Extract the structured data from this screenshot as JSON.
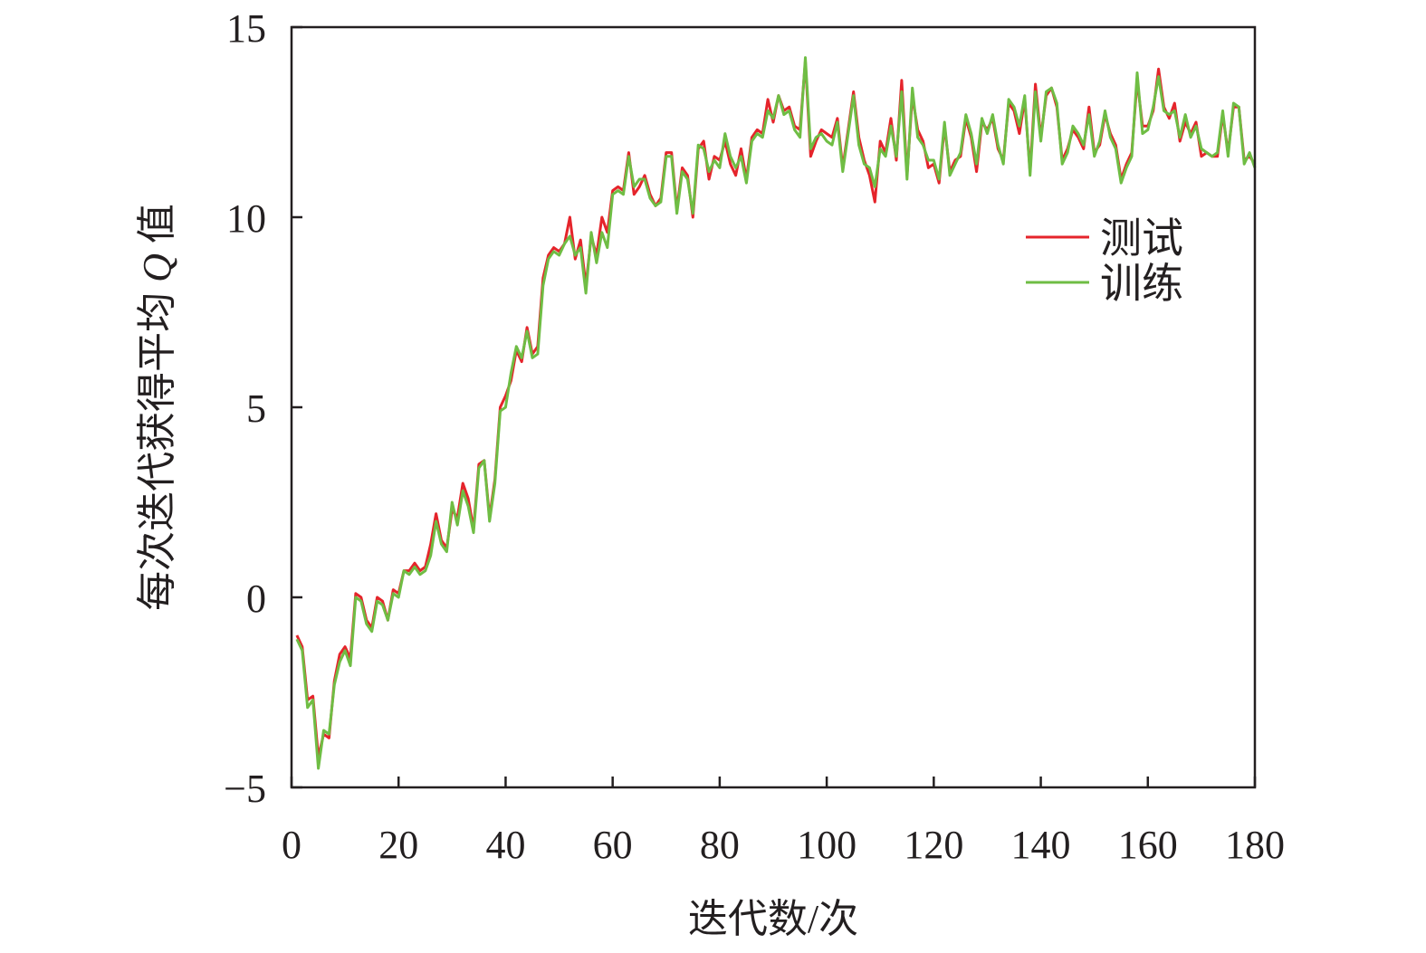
{
  "chart_data": {
    "type": "line",
    "title": "",
    "xlabel": "迭代数/次",
    "ylabel_parts": [
      "每次迭代获得平均 ",
      "Q",
      " 值"
    ],
    "xlim": [
      0,
      180
    ],
    "ylim": [
      -5,
      15
    ],
    "x_ticks": [
      0,
      20,
      40,
      60,
      80,
      100,
      120,
      140,
      160,
      180
    ],
    "y_ticks": [
      -5,
      0,
      5,
      10,
      15
    ],
    "y_tick_labels": [
      "−5",
      "0",
      "5",
      "10",
      "15"
    ],
    "grid": false,
    "legend_position": "right, upper-middle",
    "series": [
      {
        "name": "测试",
        "color": "#e5242b",
        "x": [
          1,
          2,
          3,
          4,
          5,
          6,
          7,
          8,
          9,
          10,
          11,
          12,
          13,
          14,
          15,
          16,
          17,
          18,
          19,
          20,
          21,
          22,
          23,
          24,
          25,
          26,
          27,
          28,
          29,
          30,
          31,
          32,
          33,
          34,
          35,
          36,
          37,
          38,
          39,
          40,
          41,
          42,
          43,
          44,
          45,
          46,
          47,
          48,
          49,
          50,
          51,
          52,
          53,
          54,
          55,
          56,
          57,
          58,
          59,
          60,
          61,
          62,
          63,
          64,
          65,
          66,
          67,
          68,
          69,
          70,
          71,
          72,
          73,
          74,
          75,
          76,
          77,
          78,
          79,
          80,
          81,
          82,
          83,
          84,
          85,
          86,
          87,
          88,
          89,
          90,
          91,
          92,
          93,
          94,
          95,
          96,
          97,
          98,
          99,
          100,
          101,
          102,
          103,
          104,
          105,
          106,
          107,
          108,
          109,
          110,
          111,
          112,
          113,
          114,
          115,
          116,
          117,
          118,
          119,
          120,
          121,
          122,
          123,
          124,
          125,
          126,
          127,
          128,
          129,
          130,
          131,
          132,
          133,
          134,
          135,
          136,
          137,
          138,
          139,
          140,
          141,
          142,
          143,
          144,
          145,
          146,
          147,
          148,
          149,
          150,
          151,
          152,
          153,
          154,
          155,
          156,
          157,
          158,
          159,
          160,
          161,
          162,
          163,
          164,
          165,
          166,
          167,
          168,
          169,
          170,
          171,
          172,
          173,
          174,
          175,
          176,
          177,
          178,
          179,
          180
        ],
        "values": [
          -1.0,
          -1.3,
          -2.7,
          -2.6,
          -4.2,
          -3.6,
          -3.7,
          -2.2,
          -1.5,
          -1.3,
          -1.6,
          0.1,
          0.0,
          -0.6,
          -0.8,
          0.0,
          -0.1,
          -0.6,
          0.2,
          0.1,
          0.7,
          0.7,
          0.9,
          0.7,
          0.8,
          1.4,
          2.2,
          1.5,
          1.3,
          2.3,
          2.1,
          3.0,
          2.6,
          1.8,
          3.5,
          3.6,
          2.1,
          3.1,
          5.0,
          5.3,
          5.7,
          6.5,
          6.2,
          7.1,
          6.4,
          6.6,
          8.4,
          9.0,
          9.2,
          9.1,
          9.3,
          10.0,
          8.9,
          9.4,
          8.2,
          9.5,
          9.0,
          10.0,
          9.6,
          10.7,
          10.8,
          10.7,
          11.7,
          10.6,
          10.8,
          11.1,
          10.6,
          10.3,
          10.5,
          11.7,
          11.7,
          10.2,
          11.3,
          11.1,
          10.0,
          11.8,
          12.0,
          11.0,
          11.6,
          11.5,
          12.0,
          11.4,
          11.1,
          11.8,
          11.0,
          12.1,
          12.3,
          12.2,
          13.1,
          12.5,
          13.2,
          12.8,
          12.9,
          12.4,
          12.3,
          14.1,
          11.6,
          12.0,
          12.3,
          12.2,
          12.1,
          12.6,
          11.3,
          12.3,
          13.3,
          12.1,
          11.5,
          11.1,
          10.4,
          12.0,
          11.7,
          12.6,
          11.5,
          13.6,
          11.1,
          13.2,
          12.3,
          12.0,
          11.3,
          11.4,
          10.9,
          12.4,
          11.2,
          11.5,
          11.6,
          12.6,
          12.1,
          11.2,
          12.5,
          12.3,
          12.6,
          11.8,
          11.5,
          13.0,
          12.8,
          12.2,
          13.1,
          11.2,
          13.5,
          12.1,
          13.2,
          13.4,
          12.9,
          11.5,
          11.8,
          12.3,
          12.1,
          11.8,
          12.9,
          11.7,
          11.9,
          12.7,
          12.2,
          11.9,
          11.0,
          11.4,
          11.7,
          13.6,
          12.4,
          12.4,
          12.8,
          13.9,
          12.9,
          12.6,
          13.0,
          12.0,
          12.5,
          12.2,
          12.5,
          11.6,
          11.7,
          11.6,
          11.6,
          12.7,
          11.7,
          12.9,
          12.9,
          11.5,
          11.6,
          11.4
        ]
      },
      {
        "name": "训练",
        "color": "#6fbd44",
        "x": [
          1,
          2,
          3,
          4,
          5,
          6,
          7,
          8,
          9,
          10,
          11,
          12,
          13,
          14,
          15,
          16,
          17,
          18,
          19,
          20,
          21,
          22,
          23,
          24,
          25,
          26,
          27,
          28,
          29,
          30,
          31,
          32,
          33,
          34,
          35,
          36,
          37,
          38,
          39,
          40,
          41,
          42,
          43,
          44,
          45,
          46,
          47,
          48,
          49,
          50,
          51,
          52,
          53,
          54,
          55,
          56,
          57,
          58,
          59,
          60,
          61,
          62,
          63,
          64,
          65,
          66,
          67,
          68,
          69,
          70,
          71,
          72,
          73,
          74,
          75,
          76,
          77,
          78,
          79,
          80,
          81,
          82,
          83,
          84,
          85,
          86,
          87,
          88,
          89,
          90,
          91,
          92,
          93,
          94,
          95,
          96,
          97,
          98,
          99,
          100,
          101,
          102,
          103,
          104,
          105,
          106,
          107,
          108,
          109,
          110,
          111,
          112,
          113,
          114,
          115,
          116,
          117,
          118,
          119,
          120,
          121,
          122,
          123,
          124,
          125,
          126,
          127,
          128,
          129,
          130,
          131,
          132,
          133,
          134,
          135,
          136,
          137,
          138,
          139,
          140,
          141,
          142,
          143,
          144,
          145,
          146,
          147,
          148,
          149,
          150,
          151,
          152,
          153,
          154,
          155,
          156,
          157,
          158,
          159,
          160,
          161,
          162,
          163,
          164,
          165,
          166,
          167,
          168,
          169,
          170,
          171,
          172,
          173,
          174,
          175,
          176,
          177,
          178,
          179,
          180
        ],
        "values": [
          -1.1,
          -1.4,
          -2.9,
          -2.7,
          -4.5,
          -3.5,
          -3.6,
          -2.3,
          -1.7,
          -1.4,
          -1.8,
          0.0,
          -0.1,
          -0.7,
          -0.9,
          -0.1,
          -0.2,
          -0.6,
          0.1,
          0.0,
          0.7,
          0.6,
          0.8,
          0.6,
          0.7,
          1.1,
          2.0,
          1.4,
          1.2,
          2.5,
          1.9,
          2.8,
          2.4,
          1.7,
          3.4,
          3.6,
          2.0,
          3.0,
          4.9,
          5.0,
          5.9,
          6.6,
          6.3,
          7.0,
          6.3,
          6.4,
          8.2,
          8.9,
          9.1,
          9.0,
          9.3,
          9.5,
          9.0,
          9.2,
          8.0,
          9.6,
          8.8,
          9.6,
          9.2,
          10.6,
          10.7,
          10.6,
          11.6,
          10.8,
          11.0,
          11.0,
          10.5,
          10.3,
          10.4,
          11.6,
          11.6,
          10.1,
          11.2,
          11.0,
          10.1,
          11.9,
          11.8,
          11.2,
          11.5,
          11.3,
          12.2,
          11.6,
          11.3,
          11.6,
          10.9,
          12.0,
          12.2,
          12.1,
          12.8,
          12.6,
          13.2,
          12.7,
          12.8,
          12.3,
          12.1,
          14.2,
          11.8,
          12.1,
          12.2,
          12.0,
          11.9,
          12.5,
          11.2,
          12.2,
          13.2,
          11.9,
          11.4,
          11.3,
          10.8,
          11.8,
          11.6,
          12.4,
          11.6,
          13.3,
          11.0,
          13.4,
          12.1,
          11.9,
          11.5,
          11.5,
          11.0,
          12.5,
          11.1,
          11.4,
          11.7,
          12.7,
          12.2,
          11.4,
          12.6,
          12.2,
          12.7,
          11.9,
          11.4,
          13.1,
          12.9,
          12.4,
          13.2,
          11.1,
          13.3,
          12.0,
          13.3,
          13.4,
          13.0,
          11.4,
          11.7,
          12.4,
          12.2,
          11.9,
          12.7,
          11.6,
          12.0,
          12.8,
          12.1,
          11.8,
          10.9,
          11.3,
          11.6,
          13.8,
          12.2,
          12.3,
          12.9,
          13.7,
          12.8,
          12.7,
          12.8,
          12.1,
          12.7,
          12.1,
          12.4,
          11.8,
          11.7,
          11.6,
          11.7,
          12.8,
          11.6,
          13.0,
          12.9,
          11.4,
          11.7,
          11.3
        ]
      }
    ]
  }
}
